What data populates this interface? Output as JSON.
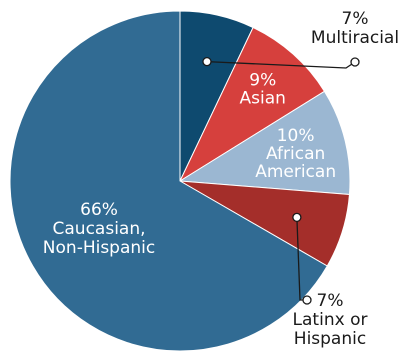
{
  "chart_data": {
    "type": "pie",
    "title": "",
    "start": "top",
    "direction": "clockwise",
    "slices": [
      {
        "label": "Multiracial",
        "value": 7,
        "value_label": "7%",
        "color": "#0e4a6f",
        "label_lines": [
          "7%",
          "Multiracial"
        ],
        "label_position": "outside-top-right"
      },
      {
        "label": "Asian",
        "value": 9,
        "value_label": "9%",
        "color": "#d6403d",
        "label_lines": [
          "9%",
          "Asian"
        ],
        "label_position": "inside"
      },
      {
        "label": "African American",
        "value": 10,
        "value_label": "10%",
        "color": "#9bb7d2",
        "label_lines": [
          "10%",
          "African",
          "American"
        ],
        "label_position": "inside"
      },
      {
        "label": "Latinx or Hispanic",
        "value": 7,
        "value_label": "7%",
        "color": "#a42e2a",
        "label_lines": [
          "7%",
          "Latinx or",
          "Hispanic"
        ],
        "label_position": "outside-bottom-right"
      },
      {
        "label": "Caucasian, Non-Hispanic",
        "value": 66,
        "value_label": "66%",
        "color": "#316b93",
        "label_lines": [
          "66%",
          "Caucasian,",
          "Non-Hispanic"
        ],
        "label_position": "inside"
      }
    ]
  }
}
